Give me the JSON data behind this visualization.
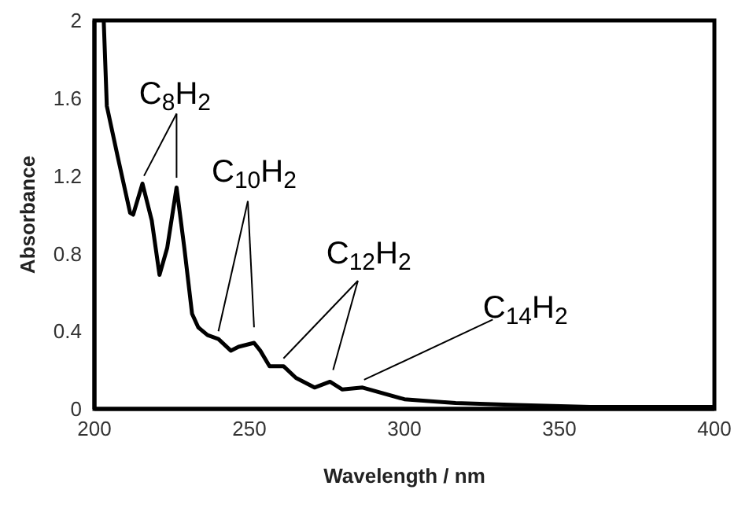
{
  "chart_data": {
    "type": "line",
    "xlabel": "Wavelength / nm",
    "ylabel": "Absorbance",
    "xlim": [
      200,
      400
    ],
    "xticks": [
      200,
      250,
      300,
      350,
      400
    ],
    "ylim": [
      0,
      2
    ],
    "yticks": [
      0,
      0.4,
      0.8,
      1.2,
      1.6,
      2
    ],
    "marker": "none",
    "line_style": "solid",
    "annotations": [
      {
        "text": "C$_{8}$H$_{2}$",
        "x": 216,
        "y": 1.16
      },
      {
        "text": "C$_{10}$H$_{2}$",
        "x": 240,
        "y": 0.36
      },
      {
        "text": "C$_{12}$H$_{2}$",
        "x": 261,
        "y": 0.22
      },
      {
        "text": "C$_{14}$H$_{2}$",
        "x": 287,
        "y": 0.11
      }
    ],
    "series": [
      {
        "color": "#000000",
        "x": [
          203,
          204,
          207.5,
          211.5,
          212.5,
          215.5,
          218.5,
          221,
          223.5,
          226.5,
          229,
          231.5,
          233.5,
          236.5,
          240,
          244,
          246.5,
          251.5,
          253.5,
          256.5,
          261,
          265,
          271,
          276,
          280,
          286.5,
          300,
          316.5,
          336,
          360,
          400
        ],
        "values": [
          2,
          1.56,
          1.3,
          1.01,
          1,
          1.16,
          0.97,
          0.69,
          0.83,
          1.14,
          0.83,
          0.49,
          0.42,
          0.38,
          0.36,
          0.3,
          0.32,
          0.34,
          0.3,
          0.22,
          0.22,
          0.16,
          0.11,
          0.14,
          0.1,
          0.11,
          0.05,
          0.03,
          0.02,
          0.01,
          0.01
        ]
      }
    ]
  }
}
